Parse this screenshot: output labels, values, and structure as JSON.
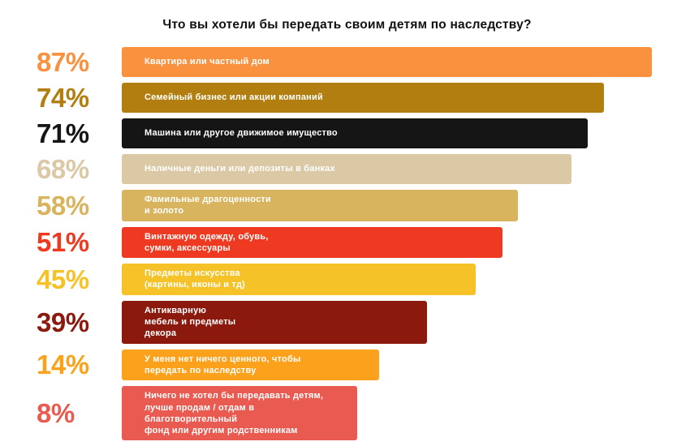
{
  "chart_data": {
    "type": "bar",
    "orientation": "horizontal",
    "title": "Что вы хотели бы передать своим детям по наследству?",
    "unit": "%",
    "value_range": [
      0,
      100
    ],
    "grid": false,
    "legend": false,
    "note": "bars not strictly proportional; short bars widened to fit labels",
    "items": [
      {
        "value": 87,
        "value_label": "87%",
        "label": "Квартира или частный дом",
        "color": "#F9913E",
        "width_pct": 99
      },
      {
        "value": 74,
        "value_label": "74%",
        "label": "Семейный бизнес или акции компаний",
        "color": "#B17E0F",
        "width_pct": 90
      },
      {
        "value": 71,
        "value_label": "71%",
        "label": "Машина или другое движимое имущество",
        "color": "#151515",
        "width_pct": 87
      },
      {
        "value": 68,
        "value_label": "68%",
        "label": "Наличные деньги или депозиты в банках",
        "color": "#DBC8A4",
        "width_pct": 84
      },
      {
        "value": 58,
        "value_label": "58%",
        "label": "Фамильные драгоценности\nи золото",
        "color": "#D8B45F",
        "width_pct": 74
      },
      {
        "value": 51,
        "value_label": "51%",
        "label": "Винтажную одежду, обувь,\nсумки, аксессуары",
        "color": "#EE3A21",
        "width_pct": 71
      },
      {
        "value": 45,
        "value_label": "45%",
        "label": "Предметы искусства\n(картины, иконы и тд)",
        "color": "#F5C228",
        "width_pct": 66
      },
      {
        "value": 39,
        "value_label": "39%",
        "label": "Антикварную\nмебель и предметы\nдекора",
        "color": "#8C190D",
        "width_pct": 57
      },
      {
        "value": 14,
        "value_label": "14%",
        "label": "У меня нет ничего ценного, чтобы\nпередать по наследству",
        "color": "#FCA11C",
        "width_pct": 48
      },
      {
        "value": 8,
        "value_label": "8%",
        "label": "Ничего не хотел бы передавать детям,\nлучше продам / отдам в благотворительный\nфонд или другим родственникам",
        "color": "#E95B50",
        "width_pct": 44
      }
    ]
  }
}
